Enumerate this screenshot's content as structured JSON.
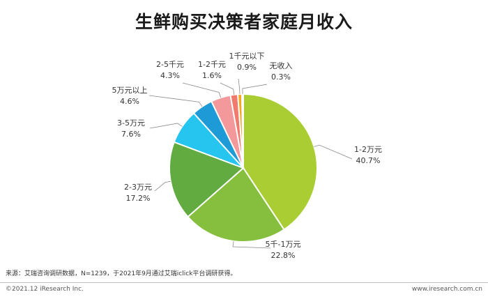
{
  "title": "生鲜购买决策者家庭月收入",
  "chart_data": {
    "type": "pie",
    "title": "生鲜购买决策者家庭月收入",
    "slices": [
      {
        "label": "1-2万元",
        "value": 40.7,
        "value_text": "40.7%",
        "color": "#aacd34"
      },
      {
        "label": "5千-1万元",
        "value": 22.8,
        "value_text": "22.8%",
        "color": "#86bf3e"
      },
      {
        "label": "2-3万元",
        "value": 17.2,
        "value_text": "17.2%",
        "color": "#61ab41"
      },
      {
        "label": "3-5万元",
        "value": 7.6,
        "value_text": "7.6%",
        "color": "#26c5ef"
      },
      {
        "label": "5万元以上",
        "value": 4.6,
        "value_text": "4.6%",
        "color": "#1e9ad6"
      },
      {
        "label": "2-5千元",
        "value": 4.3,
        "value_text": "4.3%",
        "color": "#f4999b"
      },
      {
        "label": "1-2千元",
        "value": 1.6,
        "value_text": "1.6%",
        "color": "#f07a6e"
      },
      {
        "label": "1千元以下",
        "value": 0.9,
        "value_text": "0.9%",
        "color": "#f5a623"
      },
      {
        "label": "无收入",
        "value": 0.3,
        "value_text": "0.3%",
        "color": "#ffe14a"
      }
    ]
  },
  "source_note": "来源：艾瑞咨询调研数据，N=1239，于2021年9月通过艾瑞iclick平台调研获得。",
  "footer": {
    "copyright": "©2021.12 iResearch Inc.",
    "website": "www.iresearch.com.cn"
  }
}
